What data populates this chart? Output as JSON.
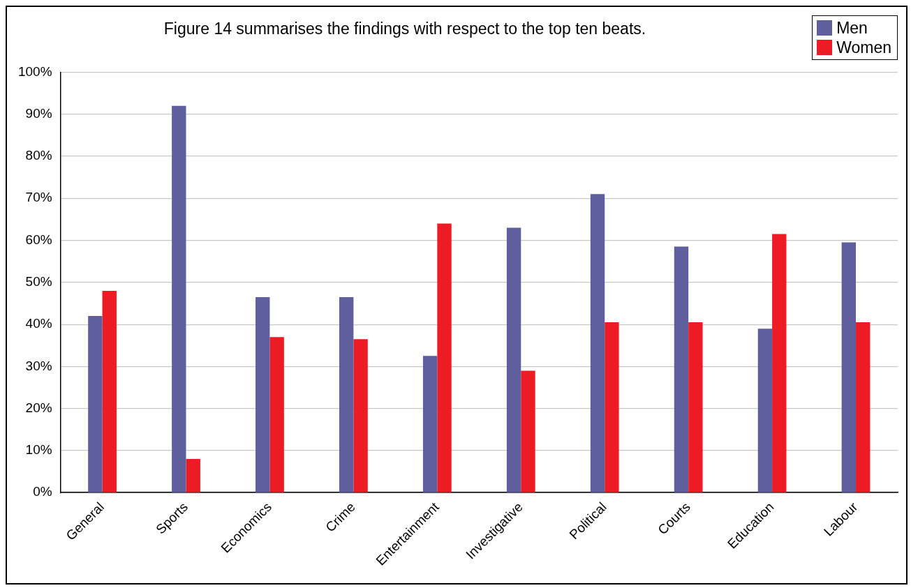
{
  "chart_data": {
    "type": "bar",
    "title": "Figure 14 summarises the findings with respect to the top ten beats.",
    "categories": [
      "General",
      "Sports",
      "Economics",
      "Crime",
      "Entertainment",
      "Investigative",
      "Political",
      "Courts",
      "Education",
      "Labour"
    ],
    "series": [
      {
        "name": "Men",
        "color": "#5f5f9e",
        "values": [
          42,
          92,
          46.5,
          46.5,
          32.5,
          63,
          71,
          58.5,
          39,
          59.5
        ]
      },
      {
        "name": "Women",
        "color": "#ed1c24",
        "values": [
          48,
          8,
          37,
          36.5,
          64,
          29,
          40.5,
          40.5,
          61.5,
          40.5
        ]
      }
    ],
    "ylim": [
      0,
      100
    ],
    "yticks": [
      {
        "value": 0,
        "label": "0%"
      },
      {
        "value": 10,
        "label": "10%"
      },
      {
        "value": 20,
        "label": "20%"
      },
      {
        "value": 30,
        "label": "30%"
      },
      {
        "value": 40,
        "label": "40%"
      },
      {
        "value": 50,
        "label": "50%"
      },
      {
        "value": 60,
        "label": "60%"
      },
      {
        "value": 70,
        "label": "70%"
      },
      {
        "value": 80,
        "label": "80%"
      },
      {
        "value": 90,
        "label": "90%"
      },
      {
        "value": 100,
        "label": "100%"
      }
    ],
    "grid": "y",
    "legend": "top right"
  }
}
